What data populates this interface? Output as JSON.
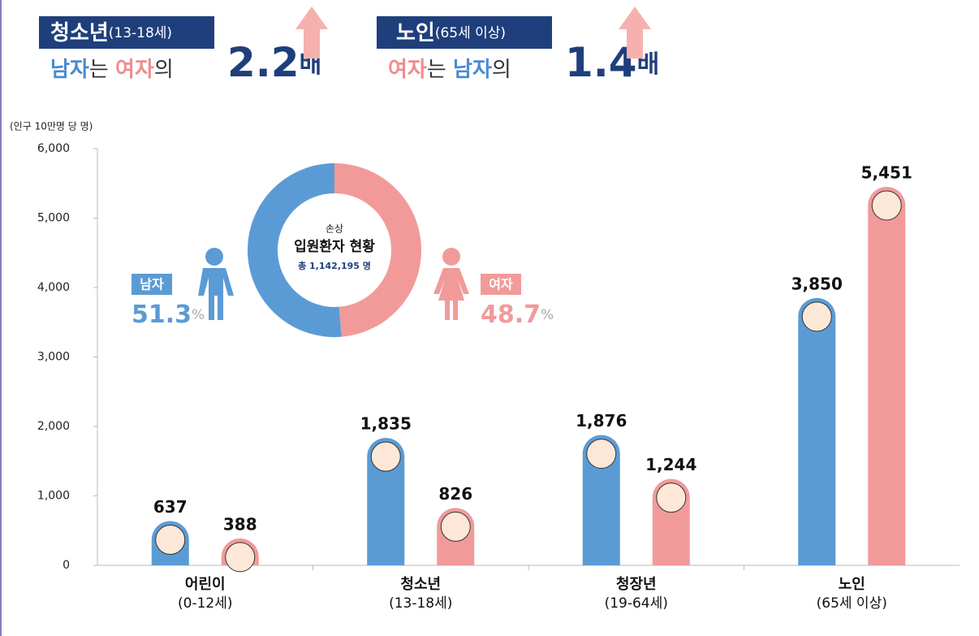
{
  "headlines": [
    {
      "label": "청소년",
      "range": "(13-18세)",
      "parts": [
        "남자",
        "는 ",
        "여자",
        "의"
      ],
      "ratio": "2.2",
      "unit": "배"
    },
    {
      "label": "노인",
      "range": "(65세 이상)",
      "parts": [
        "여자",
        "는 ",
        "남자",
        "의"
      ],
      "ratio": "1.4",
      "unit": "배"
    }
  ],
  "chart_data": [
    {
      "type": "bar",
      "y_label": "(인구 10만명 당 명)",
      "categories": [
        "어린이",
        "청소년",
        "청장년",
        "노인"
      ],
      "category_subtitles": [
        "(0-12세)",
        "(13-18세)",
        "(19-64세)",
        "(65세 이상)"
      ],
      "ylim": [
        0,
        6000
      ],
      "yticks": [
        0,
        {
          "value": 1000,
          "label": "1,000"
        },
        {
          "value": 2000,
          "label": "2,000"
        },
        {
          "value": 3000,
          "label": "3,000"
        },
        {
          "value": 4000,
          "label": "4,000"
        },
        {
          "value": 5000,
          "label": "5,000"
        },
        {
          "value": 6000,
          "label": "6,000"
        }
      ],
      "series": [
        {
          "name": "남자",
          "color": "#5b9bd5",
          "values": [
            637,
            1835,
            1876,
            3850
          ],
          "value_labels": [
            "637",
            "1,835",
            "1,876",
            "3,850"
          ]
        },
        {
          "name": "여자",
          "color": "#f29a9a",
          "values": [
            388,
            826,
            1244,
            5451
          ],
          "value_labels": [
            "388",
            "826",
            "1,244",
            "5,451"
          ]
        }
      ]
    },
    {
      "type": "pie",
      "kicker": "손상",
      "title": "입원환자 현황",
      "total": "총 1,142,195 명",
      "categories": [
        "남자",
        "여자"
      ],
      "values": [
        51.3,
        48.7
      ],
      "unit": "%",
      "colors": [
        "#5b9bd5",
        "#f29a9a"
      ]
    }
  ]
}
